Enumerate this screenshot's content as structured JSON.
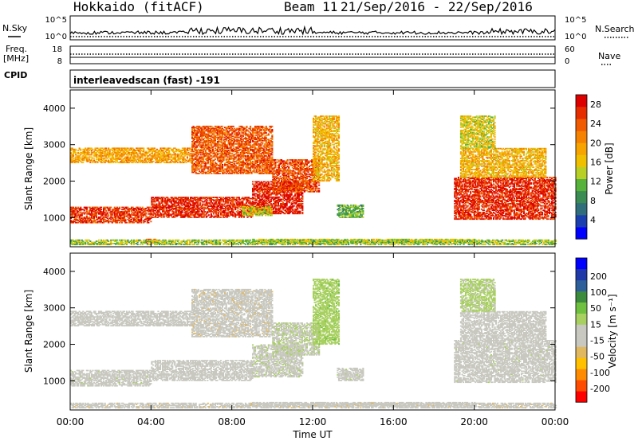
{
  "header": {
    "title": "Hokkaido (fitACF)",
    "beam": "Beam 11",
    "dates": "21/Sep/2016 - 22/Sep/2016"
  },
  "noise_panel": {
    "left_label": "N.Sky",
    "right_label": "N.Search",
    "left_ticks": [
      "10^5",
      "10^0"
    ],
    "right_ticks": [
      "10^5",
      "10^0"
    ]
  },
  "freq_panel": {
    "left_label_1": "Freq.",
    "left_label_2": "[MHz]",
    "left_ticks": [
      "18",
      "8"
    ],
    "right_label": "Nave",
    "right_ticks": [
      "60",
      "0"
    ]
  },
  "cpid_panel": {
    "label": "CPID",
    "text": "interleavedscan (fast) -191"
  },
  "colors": {
    "power": [
      "#0000ff",
      "#1c3fb0",
      "#2f6e7a",
      "#3b8b54",
      "#56b23a",
      "#b8d025",
      "#f0c000",
      "#f7a400",
      "#f58200",
      "#f05a00",
      "#e62d00",
      "#dc0000"
    ],
    "velocity": [
      "#ff0000",
      "#ff4c00",
      "#ff8c00",
      "#ffc000",
      "#e0b860",
      "#c8c8c0",
      "#c8c8c0",
      "#a8d060",
      "#70c040",
      "#3c8a3c",
      "#2e5f9a",
      "#1f3aa8",
      "#0000ff"
    ]
  },
  "chart_data": [
    {
      "type": "heatmap",
      "name": "power",
      "ylabel": "Slant Range [km]",
      "x_ticks": [
        "00:00",
        "04:00",
        "08:00",
        "12:00",
        "16:00",
        "20:00",
        "00:00"
      ],
      "y_ticks": [
        "1000",
        "2000",
        "3000",
        "4000"
      ],
      "ylim": [
        200,
        4500
      ],
      "xlim_hours": [
        0,
        24
      ],
      "colorbar": {
        "label": "Power [dB]",
        "ticks": [
          "4",
          "8",
          "12",
          "16",
          "20",
          "24",
          "28"
        ],
        "range": [
          0,
          30
        ]
      },
      "echo_regions": [
        {
          "t0": 0.0,
          "t1": 4.0,
          "r0": 850,
          "r1": 1300,
          "val": 26
        },
        {
          "t0": 4.0,
          "t1": 9.0,
          "r0": 1000,
          "r1": 1550,
          "val": 27
        },
        {
          "t0": 9.0,
          "t1": 11.5,
          "r0": 1100,
          "r1": 2000,
          "val": 28
        },
        {
          "t0": 0.0,
          "t1": 6.0,
          "r0": 2500,
          "r1": 2900,
          "val": 19
        },
        {
          "t0": 6.0,
          "t1": 10.0,
          "r0": 2200,
          "r1": 3500,
          "val": 24
        },
        {
          "t0": 10.0,
          "t1": 12.3,
          "r0": 1700,
          "r1": 2600,
          "val": 25
        },
        {
          "t0": 12.0,
          "t1": 13.3,
          "r0": 2000,
          "r1": 3800,
          "val": 18
        },
        {
          "t0": 13.2,
          "t1": 14.5,
          "r0": 1000,
          "r1": 1350,
          "val": 11
        },
        {
          "t0": 8.5,
          "t1": 10.0,
          "r0": 1050,
          "r1": 1300,
          "val": 14
        },
        {
          "t0": 9.0,
          "t1": 20.0,
          "r0": 300,
          "r1": 420,
          "val": 14
        },
        {
          "t0": 3.7,
          "t1": 4.3,
          "r0": 300,
          "r1": 420,
          "val": 27
        },
        {
          "t0": 19.0,
          "t1": 24.0,
          "r0": 950,
          "r1": 2100,
          "val": 27
        },
        {
          "t0": 19.3,
          "t1": 23.5,
          "r0": 2100,
          "r1": 2900,
          "val": 18
        },
        {
          "t0": 19.3,
          "t1": 21.0,
          "r0": 2900,
          "r1": 3800,
          "val": 15
        },
        {
          "t0": 0.0,
          "t1": 24.0,
          "r0": 250,
          "r1": 380,
          "val": 13
        }
      ]
    },
    {
      "type": "heatmap",
      "name": "velocity",
      "ylabel": "Slant Range [km]",
      "xlabel": "Time UT",
      "x_ticks": [
        "00:00",
        "04:00",
        "08:00",
        "12:00",
        "16:00",
        "20:00",
        "00:00"
      ],
      "y_ticks": [
        "1000",
        "2000",
        "3000",
        "4000"
      ],
      "ylim": [
        200,
        4500
      ],
      "xlim_hours": [
        0,
        24
      ],
      "colorbar": {
        "label": "Velocity [m s⁻¹]",
        "ticks": [
          "200",
          "100",
          "50",
          "15",
          "-15",
          "-50",
          "-100",
          "-200"
        ],
        "range": [
          -250,
          250
        ]
      },
      "echo_regions": [
        {
          "t0": 0.0,
          "t1": 4.0,
          "r0": 850,
          "r1": 1300,
          "val": 0
        },
        {
          "t0": 4.0,
          "t1": 9.0,
          "r0": 1000,
          "r1": 1550,
          "val": -5
        },
        {
          "t0": 9.0,
          "t1": 11.5,
          "r0": 1100,
          "r1": 2000,
          "val": 5
        },
        {
          "t0": 0.0,
          "t1": 6.0,
          "r0": 2500,
          "r1": 2900,
          "val": -30
        },
        {
          "t0": 6.0,
          "t1": 10.0,
          "r0": 2200,
          "r1": 3500,
          "val": -40
        },
        {
          "t0": 10.0,
          "t1": 12.3,
          "r0": 1700,
          "r1": 2600,
          "val": 10
        },
        {
          "t0": 12.0,
          "t1": 13.3,
          "r0": 2000,
          "r1": 3800,
          "val": 40
        },
        {
          "t0": 13.2,
          "t1": 14.5,
          "r0": 1000,
          "r1": 1350,
          "val": 0
        },
        {
          "t0": 9.0,
          "t1": 20.0,
          "r0": 300,
          "r1": 420,
          "val": -20
        },
        {
          "t0": 19.0,
          "t1": 24.0,
          "r0": 950,
          "r1": 2100,
          "val": 0
        },
        {
          "t0": 19.3,
          "t1": 23.5,
          "r0": 2100,
          "r1": 2900,
          "val": -5
        },
        {
          "t0": 19.3,
          "t1": 21.0,
          "r0": 2900,
          "r1": 3800,
          "val": 30
        },
        {
          "t0": 0.0,
          "t1": 24.0,
          "r0": 250,
          "r1": 380,
          "val": -40
        }
      ]
    }
  ]
}
